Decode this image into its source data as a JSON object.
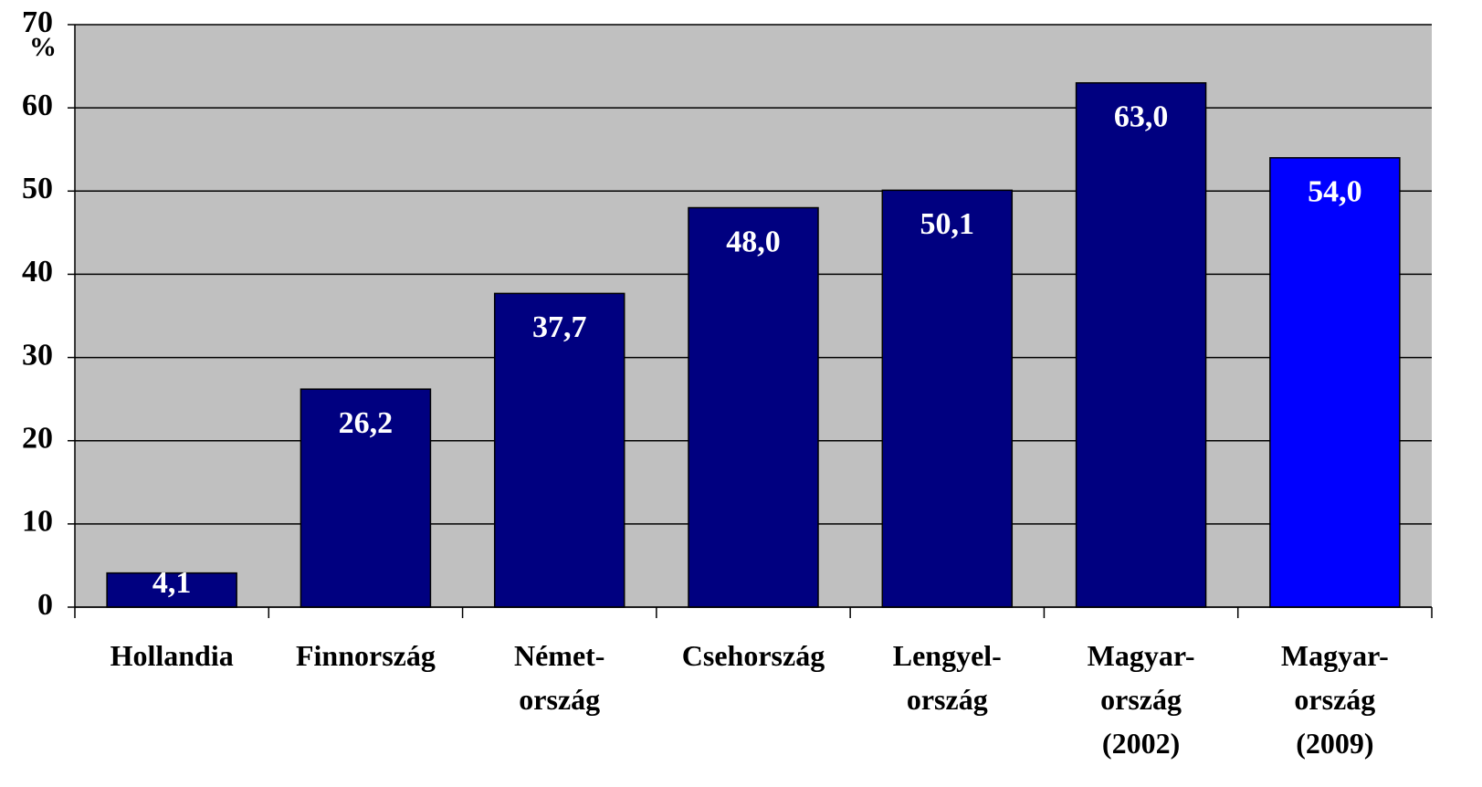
{
  "chart_data": {
    "type": "bar",
    "y_label": "%",
    "categories": [
      "Hollandia",
      "Finnország",
      "Német-\nország",
      "Csehország",
      "Lengyel-\nország",
      "Magyar-\nország\n(2002)",
      "Magyar-\nország\n(2009)"
    ],
    "values": [
      4.1,
      26.2,
      37.7,
      48.0,
      50.1,
      63.0,
      54.0
    ],
    "value_labels": [
      "4,1",
      "26,2",
      "37,7",
      "48,0",
      "50,1",
      "63,0",
      "54,0"
    ],
    "colors": [
      "#000080",
      "#000080",
      "#000080",
      "#000080",
      "#000080",
      "#000080",
      "#0000ff"
    ],
    "ylim": [
      0,
      70
    ],
    "yticks": [
      0,
      10,
      20,
      30,
      40,
      50,
      60,
      70
    ],
    "grid": true
  }
}
